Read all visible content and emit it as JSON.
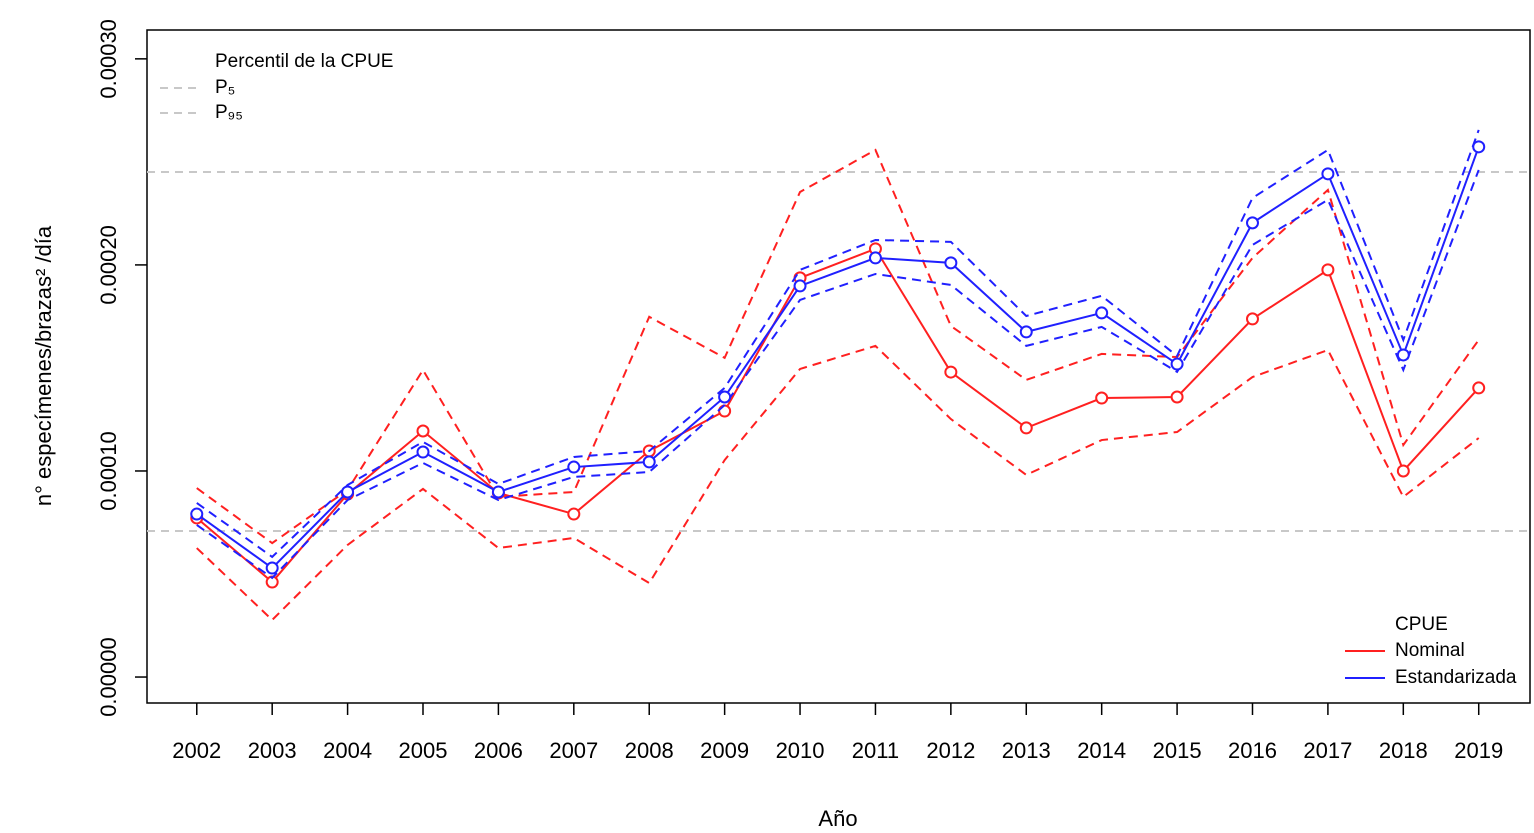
{
  "chart_data": {
    "type": "line",
    "x_label": "Año",
    "y_label": "n° especímenes/brazas² /día",
    "x": [
      2002,
      2003,
      2004,
      2005,
      2006,
      2007,
      2008,
      2009,
      2010,
      2011,
      2012,
      2013,
      2014,
      2015,
      2016,
      2017,
      2018,
      2019
    ],
    "xlim": [
      2001.34,
      2019.68
    ],
    "xticks": [
      2002,
      2003,
      2004,
      2005,
      2006,
      2007,
      2008,
      2009,
      2010,
      2011,
      2012,
      2013,
      2014,
      2015,
      2016,
      2017,
      2018,
      2019
    ],
    "ylim": [
      -1.26e-05,
      0.000314
    ],
    "yticks": [
      {
        "value": 0,
        "label": "0.00000"
      },
      {
        "value": 0.0001,
        "label": "0.00010"
      },
      {
        "value": 0.0002,
        "label": "0.00020"
      },
      {
        "value": 0.0003,
        "label": "0.00030"
      }
    ],
    "legend_title": "CPUE",
    "series": [
      {
        "name": "Nominal",
        "color": "#ff2020",
        "values": [
          7.72e-05,
          4.61e-05,
          8.88e-05,
          0.0001194,
          8.93e-05,
          7.91e-05,
          0.0001097,
          0.0001291,
          0.0001937,
          0.0002078,
          0.000148,
          0.0001209,
          0.0001354,
          0.0001359,
          0.0001738,
          0.0001976,
          0.0001,
          0.0001403
        ],
        "lower": [
          6.26e-05,
          2.77e-05,
          6.41e-05,
          9.13e-05,
          6.26e-05,
          6.75e-05,
          4.56e-05,
          0.0001053,
          0.0001495,
          0.0001607,
          0.0001252,
          9.81e-05,
          0.000115,
          0.0001189,
          0.0001456,
          0.0001587,
          8.74e-05,
          0.000116
        ],
        "upper": [
          9.17e-05,
          6.5e-05,
          9.08e-05,
          0.000149,
          8.74e-05,
          8.98e-05,
          0.0001748,
          0.0001549,
          0.0002354,
          0.0002558,
          0.0001704,
          0.0001442,
          0.0001568,
          0.0001553,
          0.0002034,
          0.0002364,
          0.0001126,
          0.0001636
        ]
      },
      {
        "name": "Estandarizada",
        "color": "#2020ff",
        "values": [
          7.91e-05,
          5.29e-05,
          8.98e-05,
          0.0001092,
          8.98e-05,
          0.0001019,
          0.0001044,
          0.0001359,
          0.0001898,
          0.0002034,
          0.000201,
          0.0001675,
          0.0001767,
          0.0001519,
          0.0002204,
          0.0002442,
          0.0001563,
          0.0002573
        ],
        "lower": [
          7.38e-05,
          4.81e-05,
          8.59e-05,
          0.0001039,
          8.59e-05,
          9.71e-05,
          9.95e-05,
          0.000132,
          0.000183,
          0.0001956,
          0.0001903,
          0.0001607,
          0.0001699,
          0.0001481,
          0.0002097,
          0.0002316,
          0.000149,
          0.0002461
        ],
        "upper": [
          8.45e-05,
          5.83e-05,
          9.32e-05,
          0.0001141,
          9.37e-05,
          0.0001068,
          0.0001097,
          0.0001403,
          0.0001976,
          0.0002121,
          0.0002112,
          0.0001752,
          0.000185,
          0.0001558,
          0.0002325,
          0.0002558,
          0.0001636,
          0.0002655
        ]
      }
    ],
    "reference_lines_title": "Percentil de la CPUE",
    "reference_lines": [
      {
        "name": "P₅",
        "value": 7.09e-05,
        "color": "#c8c8c8"
      },
      {
        "name": "P₉₅",
        "value": 0.0002451,
        "color": "#c8c8c8"
      }
    ]
  }
}
